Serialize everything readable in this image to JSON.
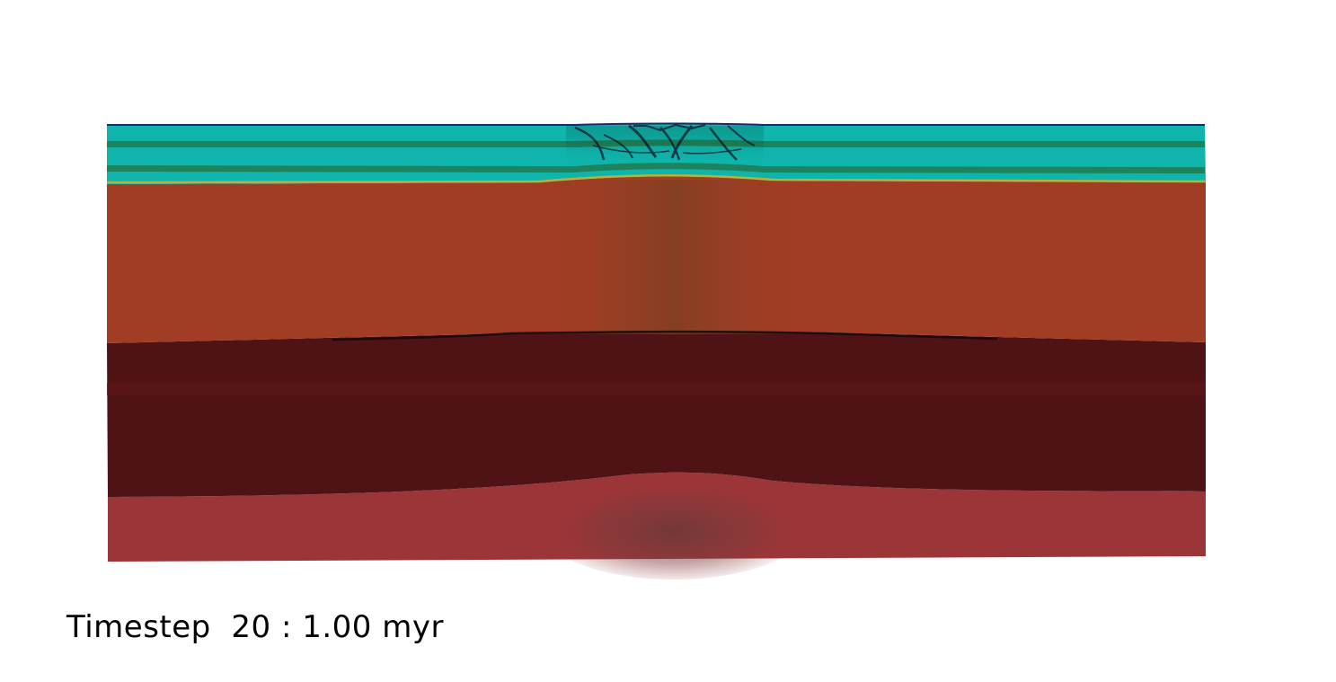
{
  "visualization": {
    "timestep_label": "Timestep  20 : 1.00 myr",
    "layer_colors": {
      "top_outline": "#1a2a6a",
      "sediment_cyan": "#0fb5ac",
      "sediment_band_green": "#1f7a4e",
      "sediment_base_yellow": "#b8b23a",
      "upper_crust_orange": "#a03d24",
      "upper_crust_center_brown": "#8a3f22",
      "lower_crust_dark": "#4f1215",
      "lower_crust_band": "#5e1517",
      "mantle_red": "#9c3538",
      "mantle_center_dark": "#6a3535",
      "fault_lines": "#0d1a2a"
    }
  }
}
